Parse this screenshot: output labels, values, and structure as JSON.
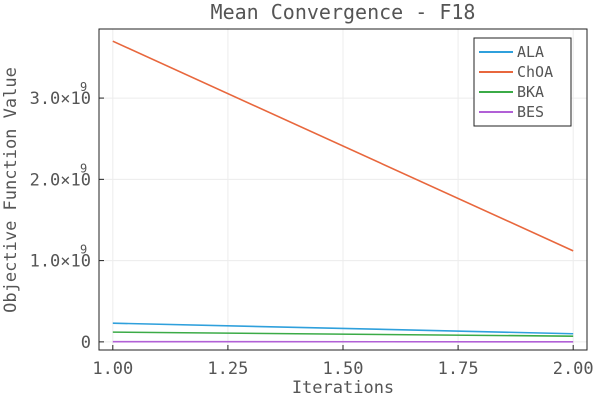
{
  "chart_data": {
    "type": "line",
    "title": "Mean Convergence - F18",
    "xlabel": "Iterations",
    "ylabel": "Objective Function Value",
    "x": [
      1.0,
      2.0
    ],
    "xlim": [
      0.97,
      2.03
    ],
    "ylim": [
      -100000000,
      3850000000
    ],
    "xticks": [
      1.0,
      1.25,
      1.5,
      1.75,
      2.0
    ],
    "xtick_labels": [
      "1.00",
      "1.25",
      "1.50",
      "1.75",
      "2.00"
    ],
    "yticks": [
      0,
      1000000000,
      2000000000,
      3000000000
    ],
    "ytick_labels": [
      {
        "mantissa": "0",
        "exponent": ""
      },
      {
        "mantissa": "1.0×10",
        "exponent": "9"
      },
      {
        "mantissa": "2.0×10",
        "exponent": "9"
      },
      {
        "mantissa": "3.0×10",
        "exponent": "9"
      }
    ],
    "grid": true,
    "legend_position": "top-right",
    "series": [
      {
        "name": "ALA",
        "color": "#2fa0dc",
        "values": [
          230000000,
          100000000
        ]
      },
      {
        "name": "ChOA",
        "color": "#e8673d",
        "values": [
          3700000000,
          1120000000
        ]
      },
      {
        "name": "BKA",
        "color": "#3bab47",
        "values": [
          120000000,
          70000000
        ]
      },
      {
        "name": "BES",
        "color": "#b160d6",
        "values": [
          2000000,
          1000000
        ]
      }
    ]
  }
}
